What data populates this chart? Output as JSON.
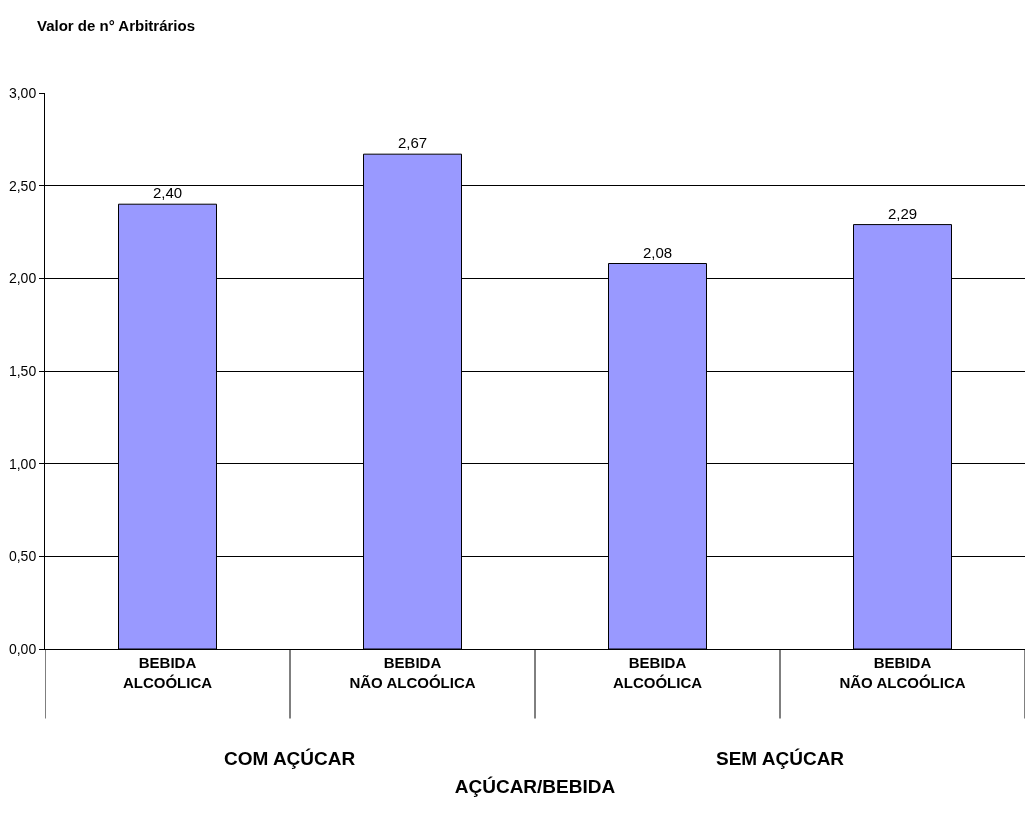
{
  "chart_data": {
    "type": "bar",
    "ylabel": "Valor de n° Arbitrários",
    "xlabel": "AÇÚCAR/BEBIDA",
    "categories": [
      "BEBIDA\nALCOÓLICA",
      "BEBIDA\nNÃO ALCOÓLICA",
      "BEBIDA\nALCOÓLICA",
      "BEBIDA\nNÃO ALCOÓLICA"
    ],
    "values": [
      2.4,
      2.67,
      2.08,
      2.29
    ],
    "value_labels": [
      "2,40",
      "2,67",
      "2,08",
      "2,29"
    ],
    "color": "#9999ff",
    "annotations": [
      "COM AÇÚCAR",
      "SEM AÇÚCAR"
    ],
    "ylim": [
      0,
      3
    ],
    "yticks": [
      {
        "value": 0,
        "label": "0,00"
      },
      {
        "value": 0.5,
        "label": "0,50"
      },
      {
        "value": 1,
        "label": "1,00"
      },
      {
        "value": 1.5,
        "label": "1,50"
      },
      {
        "value": 2,
        "label": "2,00"
      },
      {
        "value": 2.5,
        "label": "2,50"
      },
      {
        "value": 3,
        "label": "3,00"
      }
    ],
    "grid": "y",
    "legend": false
  }
}
